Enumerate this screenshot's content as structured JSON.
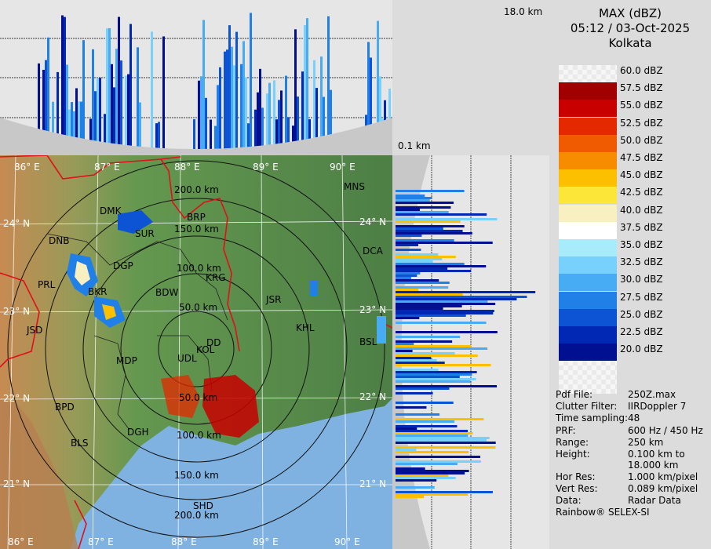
{
  "top_profile": {
    "height_max_label": "18.0 km"
  },
  "side_profile": {
    "height_min_label": "0.1 km"
  },
  "legend": {
    "product": "MAX (dBZ)",
    "datetime": "05:12 / 03-Oct-2025",
    "station": "Kolkata",
    "levels": [
      {
        "label": "60.0 dBZ",
        "color": "#f4f4f4"
      },
      {
        "label": "57.5 dBZ",
        "color": "#a00000"
      },
      {
        "label": "55.0 dBZ",
        "color": "#c80000"
      },
      {
        "label": "52.5 dBZ",
        "color": "#e42800"
      },
      {
        "label": "50.0 dBZ",
        "color": "#f05a00"
      },
      {
        "label": "47.5 dBZ",
        "color": "#f88c00"
      },
      {
        "label": "45.0 dBZ",
        "color": "#fcc000"
      },
      {
        "label": "42.5 dBZ",
        "color": "#fce638"
      },
      {
        "label": "40.0 dBZ",
        "color": "#f8f0c0"
      },
      {
        "label": "37.5 dBZ",
        "color": "#ffffff"
      },
      {
        "label": "35.0 dBZ",
        "color": "#a8ecfc"
      },
      {
        "label": "32.5 dBZ",
        "color": "#78d0fc"
      },
      {
        "label": "30.0 dBZ",
        "color": "#48acf4"
      },
      {
        "label": "27.5 dBZ",
        "color": "#2080e8"
      },
      {
        "label": "25.0 dBZ",
        "color": "#0c54d4"
      },
      {
        "label": "22.5 dBZ",
        "color": "#0028b4"
      },
      {
        "label": "20.0 dBZ",
        "color": "#001090"
      }
    ]
  },
  "info": [
    {
      "key": "Pdf File:",
      "value": "250Z.max"
    },
    {
      "key": "Clutter Filter:",
      "value": "IIRDoppler 7"
    },
    {
      "key": "Time sampling:",
      "value": "48"
    },
    {
      "key": "PRF:",
      "value": "600 Hz / 450 Hz"
    },
    {
      "key": "Range:",
      "value": "250 km"
    },
    {
      "key": "Height:",
      "value": "0.100 km to"
    },
    {
      "key": "",
      "value": "18.000 km"
    },
    {
      "key": "Hor Res:",
      "value": "1.000 km/pixel"
    },
    {
      "key": "Vert Res:",
      "value": "0.089 km/pixel"
    },
    {
      "key": "Data:",
      "value": "Radar Data"
    }
  ],
  "footer": "Rainbow® SELEX-SI",
  "map": {
    "longitudes": [
      "86° E",
      "87° E",
      "88° E",
      "89° E",
      "90° E"
    ],
    "latitudes": [
      "24° N",
      "23° N",
      "22° N",
      "21° N"
    ],
    "rings": [
      "50.0 km",
      "100.0 km",
      "150.0 km",
      "200.0 km"
    ],
    "stations": [
      "MNS",
      "BRP",
      "DMK",
      "SUR",
      "DNB",
      "DGP",
      "KRG",
      "PRL",
      "BKR",
      "BDW",
      "JSR",
      "DCA",
      "KHL",
      "JSD",
      "KOL",
      "DD",
      "UDL",
      "BSL",
      "MDP",
      "BPD",
      "DGH",
      "BLS",
      "SHD"
    ]
  },
  "colors": {
    "land": "#5f8f4f",
    "sea": "#7fb2e0",
    "grid": "#ffffff",
    "border": "#e0101a",
    "rings": "#101010"
  }
}
